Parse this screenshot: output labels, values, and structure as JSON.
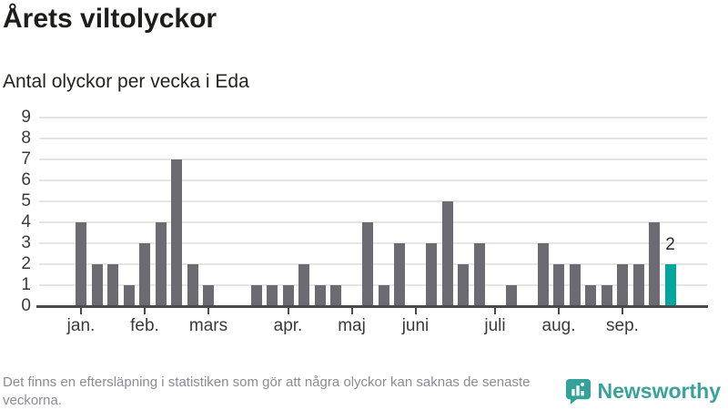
{
  "header": {
    "title": "Årets viltolyckor",
    "subtitle": "Antal olyckor per vecka i Eda"
  },
  "chart_data": {
    "type": "bar",
    "title": "Årets viltolyckor",
    "subtitle": "Antal olyckor per vecka i Eda",
    "x_unit": "vecka",
    "values": [
      4,
      2,
      2,
      1,
      3,
      4,
      7,
      2,
      1,
      0,
      0,
      1,
      1,
      1,
      2,
      1,
      1,
      0,
      4,
      1,
      3,
      0,
      3,
      5,
      2,
      3,
      0,
      1,
      0,
      3,
      2,
      2,
      1,
      1,
      2,
      2,
      4,
      2
    ],
    "highlight_last_bar": true,
    "last_value_label": "2",
    "ylim": [
      0,
      9
    ],
    "y_ticks": [
      0,
      1,
      2,
      3,
      4,
      5,
      6,
      7,
      8,
      9
    ],
    "grid": "horizontal",
    "month_ticks": [
      {
        "label": "jan.",
        "slot": 0
      },
      {
        "label": "feb.",
        "slot": 4
      },
      {
        "label": "mars",
        "slot": 8
      },
      {
        "label": "apr.",
        "slot": 13
      },
      {
        "label": "maj",
        "slot": 17
      },
      {
        "label": "juni",
        "slot": 21
      },
      {
        "label": "juli",
        "slot": 26
      },
      {
        "label": "aug.",
        "slot": 30
      },
      {
        "label": "sep.",
        "slot": 34
      }
    ],
    "colors": {
      "bar": "#6b6b71",
      "highlight": "#00a79e",
      "gridline": "#e5e5e5",
      "axis": "#4a4a4a",
      "text": "#3a3a3a"
    }
  },
  "footer": {
    "note": "Det finns en eftersläpning i statistiken som gör att några olyckor kan saknas de senaste veckorna.",
    "brand": "Newsworthy",
    "brand_color": "#3aa29a"
  }
}
